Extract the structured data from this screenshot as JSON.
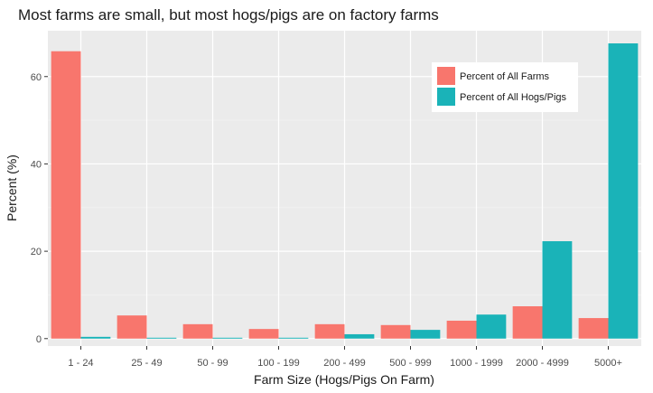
{
  "chart_data": {
    "type": "bar",
    "title": "Most farms are small, but most hogs/pigs are on factory farms",
    "xlabel": "Farm Size (Hogs/Pigs On Farm)",
    "ylabel": "Percent (%)",
    "ylim": [
      -1.7,
      70.5
    ],
    "yticks": [
      0,
      20,
      40,
      60
    ],
    "categories": [
      "1 - 24",
      "25 - 49",
      "50 - 99",
      "100 - 199",
      "200 - 499",
      "500 - 999",
      "1000 - 1999",
      "2000 - 4999",
      "5000+"
    ],
    "series": [
      {
        "name": "Percent of All Farms",
        "color": "#F8766D",
        "values": [
          65.8,
          5.3,
          3.3,
          2.2,
          3.3,
          3.1,
          4.1,
          7.4,
          4.7
        ]
      },
      {
        "name": "Percent of All Hogs/Pigs",
        "color": "#00BFC4",
        "values": [
          0.4,
          0.2,
          0.2,
          0.2,
          1.0,
          2.0,
          5.5,
          22.3,
          67.6
        ]
      }
    ],
    "legend_position": "top-right",
    "grid": true,
    "panel_color": "#EBEBEB",
    "bar_colors": [
      "#F8766D",
      "#1AB3B8"
    ]
  }
}
